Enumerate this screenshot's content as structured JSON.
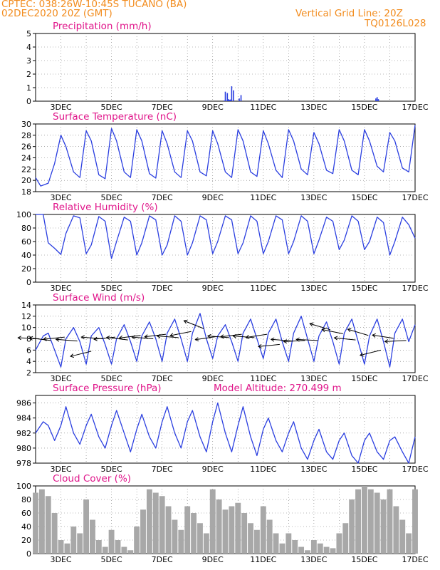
{
  "header": {
    "line1": "CPTEC:  038:26W-10:45S  TUCANO (BA)",
    "line2": "02DEC2020 20Z (GMT)",
    "vgrid": "Vertical Grid Line: 20Z",
    "run": "TQ0126L028"
  },
  "date_ticks": [
    "3DEC",
    "5DEC",
    "7DEC",
    "9DEC",
    "11DEC",
    "13DEC",
    "15DEC",
    "17DEC"
  ],
  "colors": {
    "line": "#2b3fe0",
    "bar": "#2b3fe0",
    "cloud": "#a8a8a8",
    "title": "#e0158a",
    "header": "#f28c1e",
    "wind": "#000000"
  },
  "chart_data": [
    {
      "id": "precip",
      "type": "bar",
      "title": "Precipitation (mm/h)",
      "ylim": [
        0,
        5
      ],
      "yticks": [
        0,
        1,
        2,
        3,
        4,
        5
      ],
      "x": [
        9.45,
        9.5,
        9.58,
        9.62,
        9.66,
        9.7,
        9.75,
        9.82,
        10.05,
        10.12,
        15.45,
        15.5,
        15.55
      ],
      "values": [
        0.05,
        0.7,
        0.6,
        0.15,
        0.1,
        0.12,
        1.1,
        0.8,
        0.2,
        0.45,
        0.2,
        0.3,
        0.15
      ]
    },
    {
      "id": "temp",
      "type": "line",
      "title": "Surface Temperature (nC)",
      "ylim": [
        18,
        30
      ],
      "yticks": [
        18,
        20,
        22,
        24,
        26,
        28,
        30
      ],
      "x": [
        2.0,
        2.2,
        2.5,
        2.75,
        3.0,
        3.2,
        3.5,
        3.75,
        4.0,
        4.2,
        4.5,
        4.75,
        5.0,
        5.2,
        5.5,
        5.75,
        6.0,
        6.2,
        6.5,
        6.75,
        7.0,
        7.2,
        7.5,
        7.75,
        8.0,
        8.2,
        8.5,
        8.75,
        9.0,
        9.2,
        9.5,
        9.75,
        10.0,
        10.2,
        10.5,
        10.75,
        11.0,
        11.2,
        11.5,
        11.75,
        12.0,
        12.2,
        12.5,
        12.75,
        13.0,
        13.2,
        13.5,
        13.75,
        14.0,
        14.2,
        14.5,
        14.75,
        15.0,
        15.2,
        15.5,
        15.75,
        16.0,
        16.2,
        16.5,
        16.75,
        17.0
      ],
      "values": [
        20.5,
        19.0,
        19.5,
        23.0,
        28.0,
        26.0,
        21.5,
        20.5,
        28.8,
        27.0,
        21.0,
        20.3,
        29.2,
        27.0,
        21.5,
        20.5,
        29.0,
        27.0,
        21.2,
        20.4,
        28.8,
        26.5,
        21.5,
        20.5,
        28.8,
        27.0,
        21.5,
        20.8,
        28.8,
        26.5,
        21.5,
        20.5,
        29.0,
        27.0,
        21.5,
        20.7,
        28.8,
        26.5,
        21.8,
        20.5,
        29.0,
        27.0,
        22.0,
        21.0,
        28.5,
        26.5,
        21.8,
        21.2,
        29.0,
        27.0,
        21.8,
        21.0,
        29.0,
        27.0,
        22.5,
        21.5,
        28.5,
        27.0,
        22.2,
        21.5,
        29.8
      ]
    },
    {
      "id": "rh",
      "type": "line",
      "title": "Relative Humidity (%)",
      "ylim": [
        0,
        100
      ],
      "yticks": [
        0,
        20,
        40,
        60,
        80,
        100
      ],
      "x": [
        2.0,
        2.3,
        2.5,
        2.75,
        3.0,
        3.2,
        3.5,
        3.75,
        4.0,
        4.2,
        4.5,
        4.75,
        5.0,
        5.2,
        5.5,
        5.75,
        6.0,
        6.2,
        6.5,
        6.75,
        7.0,
        7.2,
        7.5,
        7.75,
        8.0,
        8.2,
        8.5,
        8.75,
        9.0,
        9.2,
        9.5,
        9.75,
        10.0,
        10.2,
        10.5,
        10.75,
        11.0,
        11.2,
        11.5,
        11.75,
        12.0,
        12.2,
        12.5,
        12.75,
        13.0,
        13.2,
        13.5,
        13.75,
        14.0,
        14.2,
        14.5,
        14.75,
        15.0,
        15.2,
        15.5,
        15.75,
        16.0,
        16.2,
        16.5,
        16.75,
        17.0
      ],
      "values": [
        100,
        100,
        58,
        50,
        41,
        72,
        98,
        95,
        42,
        55,
        97,
        90,
        35,
        60,
        96,
        90,
        40,
        58,
        98,
        92,
        40,
        55,
        98,
        90,
        40,
        58,
        98,
        92,
        42,
        60,
        98,
        92,
        42,
        58,
        98,
        90,
        42,
        60,
        98,
        92,
        42,
        60,
        98,
        90,
        42,
        62,
        96,
        90,
        48,
        62,
        98,
        90,
        48,
        60,
        96,
        88,
        40,
        60,
        96,
        85,
        65
      ]
    },
    {
      "id": "wind",
      "type": "line",
      "title": "Surface Wind (m/s)",
      "ylim": [
        2,
        14
      ],
      "yticks": [
        2,
        4,
        6,
        8,
        10,
        12,
        14
      ],
      "x": [
        2.0,
        2.3,
        2.5,
        2.75,
        3.0,
        3.2,
        3.5,
        3.75,
        4.0,
        4.2,
        4.5,
        4.75,
        5.0,
        5.2,
        5.5,
        5.75,
        6.0,
        6.2,
        6.5,
        6.75,
        7.0,
        7.2,
        7.5,
        7.75,
        8.0,
        8.2,
        8.5,
        8.75,
        9.0,
        9.2,
        9.5,
        9.75,
        10.0,
        10.2,
        10.5,
        10.75,
        11.0,
        11.2,
        11.5,
        11.75,
        12.0,
        12.2,
        12.5,
        12.75,
        13.0,
        13.2,
        13.5,
        13.75,
        14.0,
        14.2,
        14.5,
        14.75,
        15.0,
        15.2,
        15.5,
        15.75,
        16.0,
        16.2,
        16.5,
        16.75,
        17.0
      ],
      "values": [
        6.0,
        8.5,
        9.0,
        6.0,
        3.0,
        8.0,
        10.0,
        7.5,
        3.5,
        8.5,
        10.0,
        7.0,
        3.5,
        8.0,
        10.5,
        7.5,
        4.0,
        8.5,
        11.0,
        8.0,
        4.0,
        9.0,
        11.5,
        8.0,
        4.0,
        9.0,
        12.5,
        8.0,
        4.5,
        8.5,
        10.5,
        7.5,
        4.0,
        9.0,
        11.5,
        8.0,
        4.5,
        9.0,
        11.5,
        7.5,
        4.0,
        9.0,
        12.0,
        8.0,
        4.0,
        8.5,
        11.0,
        7.5,
        3.5,
        9.0,
        11.5,
        7.5,
        3.5,
        8.5,
        11.5,
        7.5,
        3.0,
        9.0,
        11.5,
        7.5,
        10.5
      ],
      "vectors": [
        {
          "x": 2.15,
          "y": 8.0,
          "u": -1,
          "v": 0.05
        },
        {
          "x": 2.6,
          "y": 7.7,
          "u": -1,
          "v": 0.12
        },
        {
          "x": 3.15,
          "y": 8.3,
          "u": -1,
          "v": -0.1
        },
        {
          "x": 3.65,
          "y": 7.6,
          "u": -1,
          "v": 0.08
        },
        {
          "x": 4.2,
          "y": 5.8,
          "u": -1,
          "v": -0.25
        },
        {
          "x": 4.65,
          "y": 8.0,
          "u": -1,
          "v": 0.08
        },
        {
          "x": 5.15,
          "y": 8.3,
          "u": -1,
          "v": -0.1
        },
        {
          "x": 5.65,
          "y": 7.8,
          "u": -1,
          "v": 0.12
        },
        {
          "x": 6.15,
          "y": 8.6,
          "u": -1,
          "v": -0.12
        },
        {
          "x": 6.65,
          "y": 8.0,
          "u": -1,
          "v": 0.08
        },
        {
          "x": 7.15,
          "y": 8.8,
          "u": -1,
          "v": -0.12
        },
        {
          "x": 7.65,
          "y": 8.2,
          "u": -1,
          "v": 0.08
        },
        {
          "x": 8.15,
          "y": 9.3,
          "u": -1,
          "v": -0.2
        },
        {
          "x": 8.65,
          "y": 9.8,
          "u": -1,
          "v": 0.4
        },
        {
          "x": 9.15,
          "y": 8.4,
          "u": -1,
          "v": -0.15
        },
        {
          "x": 9.65,
          "y": 8.2,
          "u": -1,
          "v": 0.08
        },
        {
          "x": 10.15,
          "y": 8.8,
          "u": -1,
          "v": -0.12
        },
        {
          "x": 10.65,
          "y": 8.2,
          "u": -1,
          "v": 0.08
        },
        {
          "x": 11.15,
          "y": 8.8,
          "u": -1,
          "v": -0.15
        },
        {
          "x": 11.65,
          "y": 7.0,
          "u": -1,
          "v": -0.1
        },
        {
          "x": 12.15,
          "y": 7.6,
          "u": -1,
          "v": 0.08
        },
        {
          "x": 12.65,
          "y": 7.7,
          "u": -1,
          "v": -0.05
        },
        {
          "x": 13.15,
          "y": 7.7,
          "u": -1,
          "v": 0.05
        },
        {
          "x": 13.65,
          "y": 9.6,
          "u": -1,
          "v": 0.3
        },
        {
          "x": 14.15,
          "y": 8.9,
          "u": -1,
          "v": 0.2
        },
        {
          "x": 14.65,
          "y": 7.8,
          "u": -1,
          "v": 0.1
        },
        {
          "x": 15.15,
          "y": 8.6,
          "u": -1,
          "v": 0.3
        },
        {
          "x": 15.65,
          "y": 6.0,
          "u": -1,
          "v": -0.25
        },
        {
          "x": 16.15,
          "y": 8.1,
          "u": -1,
          "v": 0.15
        },
        {
          "x": 16.65,
          "y": 7.7,
          "u": -1,
          "v": -0.05
        }
      ]
    },
    {
      "id": "pres",
      "type": "line",
      "title": "Surface Pressure (hPa)",
      "subtitle": "Model Altitude: 270.499 m",
      "ylim": [
        978,
        987
      ],
      "yticks": [
        978,
        980,
        982,
        984,
        986
      ],
      "x": [
        2.0,
        2.3,
        2.5,
        2.75,
        3.0,
        3.2,
        3.5,
        3.75,
        4.0,
        4.2,
        4.5,
        4.75,
        5.0,
        5.2,
        5.5,
        5.75,
        6.0,
        6.2,
        6.5,
        6.75,
        7.0,
        7.2,
        7.5,
        7.75,
        8.0,
        8.2,
        8.5,
        8.75,
        9.0,
        9.2,
        9.5,
        9.75,
        10.0,
        10.2,
        10.5,
        10.75,
        11.0,
        11.2,
        11.5,
        11.75,
        12.0,
        12.2,
        12.5,
        12.75,
        13.0,
        13.2,
        13.5,
        13.75,
        14.0,
        14.2,
        14.5,
        14.75,
        15.0,
        15.2,
        15.5,
        15.75,
        16.0,
        16.2,
        16.5,
        16.75,
        17.0
      ],
      "values": [
        982.0,
        983.5,
        983.0,
        981.0,
        983.0,
        985.5,
        982.0,
        980.5,
        983.0,
        984.5,
        981.5,
        980.0,
        983.0,
        985.0,
        982.0,
        979.5,
        982.5,
        984.5,
        981.5,
        980.0,
        983.5,
        985.5,
        982.0,
        980.0,
        983.5,
        985.0,
        981.5,
        979.5,
        983.5,
        986.0,
        982.0,
        979.5,
        983.0,
        985.5,
        981.5,
        979.0,
        982.5,
        984.0,
        981.0,
        979.5,
        982.0,
        983.5,
        980.0,
        978.5,
        981.0,
        982.5,
        979.5,
        978.5,
        981.0,
        982.0,
        979.0,
        978.0,
        981.0,
        982.0,
        979.5,
        978.5,
        981.0,
        981.5,
        979.5,
        977.5,
        981.5
      ]
    },
    {
      "id": "cloud",
      "type": "bar",
      "title": "Cloud Cover (%)",
      "ylim": [
        0,
        100
      ],
      "yticks": [
        0,
        20,
        40,
        60,
        80,
        100
      ],
      "x": [
        2.0,
        2.25,
        2.5,
        2.75,
        3.0,
        3.25,
        3.5,
        3.75,
        4.0,
        4.25,
        4.5,
        4.75,
        5.0,
        5.25,
        5.5,
        5.75,
        6.0,
        6.25,
        6.5,
        6.75,
        7.0,
        7.25,
        7.5,
        7.75,
        8.0,
        8.25,
        8.5,
        8.75,
        9.0,
        9.25,
        9.5,
        9.75,
        10.0,
        10.25,
        10.5,
        10.75,
        11.0,
        11.25,
        11.5,
        11.75,
        12.0,
        12.25,
        12.5,
        12.75,
        13.0,
        13.25,
        13.5,
        13.75,
        14.0,
        14.25,
        14.5,
        14.75,
        15.0,
        15.25,
        15.5,
        15.75,
        16.0,
        16.25,
        16.5,
        16.75,
        17.0
      ],
      "values": [
        90,
        95,
        85,
        60,
        20,
        15,
        40,
        30,
        80,
        50,
        20,
        10,
        35,
        20,
        10,
        5,
        40,
        65,
        95,
        90,
        85,
        70,
        50,
        35,
        70,
        60,
        45,
        30,
        95,
        80,
        65,
        70,
        75,
        60,
        45,
        35,
        70,
        50,
        30,
        15,
        30,
        20,
        10,
        5,
        20,
        15,
        10,
        8,
        30,
        45,
        80,
        95,
        100,
        95,
        90,
        80,
        95,
        70,
        50,
        30,
        95
      ]
    }
  ]
}
